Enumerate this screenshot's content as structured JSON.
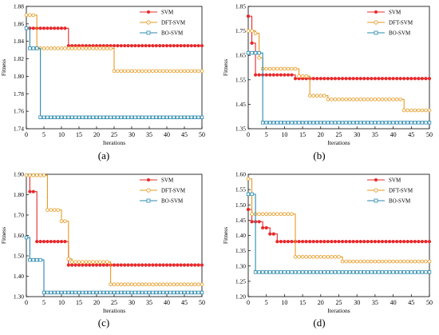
{
  "series_styles": [
    {
      "name": "SVM",
      "color": "#e8282b",
      "marker": "filled-circle"
    },
    {
      "name": "DFT-SVM",
      "color": "#e69a22",
      "marker": "open-circle"
    },
    {
      "name": "BO-SVM",
      "color": "#2a8ab0",
      "marker": "open-square"
    }
  ],
  "chart_data": [
    {
      "type": "line",
      "panel_label": "(a)",
      "xlabel": "Iterations",
      "ylabel": "Fitness",
      "xlim": [
        0,
        50
      ],
      "ylim": [
        1.74,
        1.88
      ],
      "xticks": [
        0,
        5,
        10,
        15,
        20,
        25,
        30,
        35,
        40,
        45,
        50
      ],
      "yticks": [
        1.74,
        1.76,
        1.78,
        1.8,
        1.82,
        1.84,
        1.86,
        1.88
      ],
      "ytick_labels": [
        "1.74",
        "1.76",
        "1.78",
        "1.80",
        "1.82",
        "1.84",
        "1.86",
        "1.88"
      ],
      "legend_position": "top-right",
      "series": [
        {
          "name": "SVM",
          "segments": [
            [
              0,
              1.855
            ],
            [
              12,
              1.835
            ]
          ]
        },
        {
          "name": "DFT-SVM",
          "segments": [
            [
              0,
              1.87
            ],
            [
              3,
              1.832
            ],
            [
              25,
              1.806
            ]
          ]
        },
        {
          "name": "BO-SVM",
          "segments": [
            [
              0,
              1.855
            ],
            [
              1,
              1.832
            ],
            [
              4,
              1.753
            ]
          ]
        }
      ]
    },
    {
      "type": "line",
      "panel_label": "(b)",
      "xlabel": "Iterations",
      "ylabel": "Fitness",
      "xlim": [
        0,
        50
      ],
      "ylim": [
        1.35,
        1.85
      ],
      "xticks": [
        0,
        5,
        10,
        15,
        20,
        25,
        30,
        35,
        40,
        45,
        50
      ],
      "yticks": [
        1.35,
        1.45,
        1.55,
        1.65,
        1.75,
        1.85
      ],
      "ytick_labels": [
        "1.35",
        "1.45",
        "1.55",
        "1.65",
        "1.75",
        "1.85"
      ],
      "legend_position": "top-right",
      "series": [
        {
          "name": "SVM",
          "segments": [
            [
              0,
              1.81
            ],
            [
              1,
              1.7
            ],
            [
              2,
              1.57
            ],
            [
              13,
              1.555
            ]
          ]
        },
        {
          "name": "DFT-SVM",
          "segments": [
            [
              0,
              1.75
            ],
            [
              2,
              1.74
            ],
            [
              3,
              1.64
            ],
            [
              4,
              1.595
            ],
            [
              14,
              1.565
            ],
            [
              17,
              1.485
            ],
            [
              22,
              1.47
            ],
            [
              43,
              1.425
            ]
          ]
        },
        {
          "name": "BO-SVM",
          "segments": [
            [
              0,
              1.66
            ],
            [
              4,
              1.375
            ]
          ]
        }
      ]
    },
    {
      "type": "line",
      "panel_label": "(c)",
      "xlabel": "Iterations",
      "ylabel": "Fitness",
      "xlim": [
        0,
        50
      ],
      "ylim": [
        1.3,
        1.9
      ],
      "xticks": [
        0,
        5,
        10,
        15,
        20,
        25,
        30,
        35,
        40,
        45,
        50
      ],
      "yticks": [
        1.3,
        1.4,
        1.5,
        1.6,
        1.7,
        1.8,
        1.9
      ],
      "ytick_labels": [
        "1.30",
        "1.40",
        "1.50",
        "1.60",
        "1.70",
        "1.80",
        "1.90"
      ],
      "legend_position": "top-right",
      "series": [
        {
          "name": "SVM",
          "segments": [
            [
              0,
              1.895
            ],
            [
              1,
              1.815
            ],
            [
              3,
              1.57
            ],
            [
              12,
              1.455
            ]
          ]
        },
        {
          "name": "DFT-SVM",
          "segments": [
            [
              0,
              1.895
            ],
            [
              6,
              1.725
            ],
            [
              10,
              1.67
            ],
            [
              12,
              1.485
            ],
            [
              13,
              1.47
            ],
            [
              24,
              1.36
            ]
          ]
        },
        {
          "name": "BO-SVM",
          "segments": [
            [
              0,
              1.59
            ],
            [
              1,
              1.48
            ],
            [
              5,
              1.32
            ]
          ]
        }
      ]
    },
    {
      "type": "line",
      "panel_label": "(d)",
      "xlabel": "Iterations",
      "ylabel": "Fitness",
      "xlim": [
        0,
        50
      ],
      "ylim": [
        1.2,
        1.6
      ],
      "xticks": [
        0,
        5,
        10,
        15,
        20,
        25,
        30,
        35,
        40,
        45,
        50
      ],
      "yticks": [
        1.2,
        1.25,
        1.3,
        1.35,
        1.4,
        1.45,
        1.5,
        1.55,
        1.6
      ],
      "ytick_labels": [
        "1.20",
        "1.25",
        "1.30",
        "1.35",
        "1.40",
        "1.45",
        "1.50",
        "1.55",
        "1.60"
      ],
      "legend_position": "top-right",
      "series": [
        {
          "name": "SVM",
          "segments": [
            [
              0,
              1.485
            ],
            [
              1,
              1.445
            ],
            [
              4,
              1.425
            ],
            [
              6,
              1.405
            ],
            [
              8,
              1.38
            ]
          ]
        },
        {
          "name": "DFT-SVM",
          "segments": [
            [
              0,
              1.585
            ],
            [
              1,
              1.47
            ],
            [
              13,
              1.33
            ],
            [
              26,
              1.315
            ]
          ]
        },
        {
          "name": "BO-SVM",
          "segments": [
            [
              0,
              1.535
            ],
            [
              2,
              1.28
            ]
          ]
        }
      ]
    }
  ]
}
